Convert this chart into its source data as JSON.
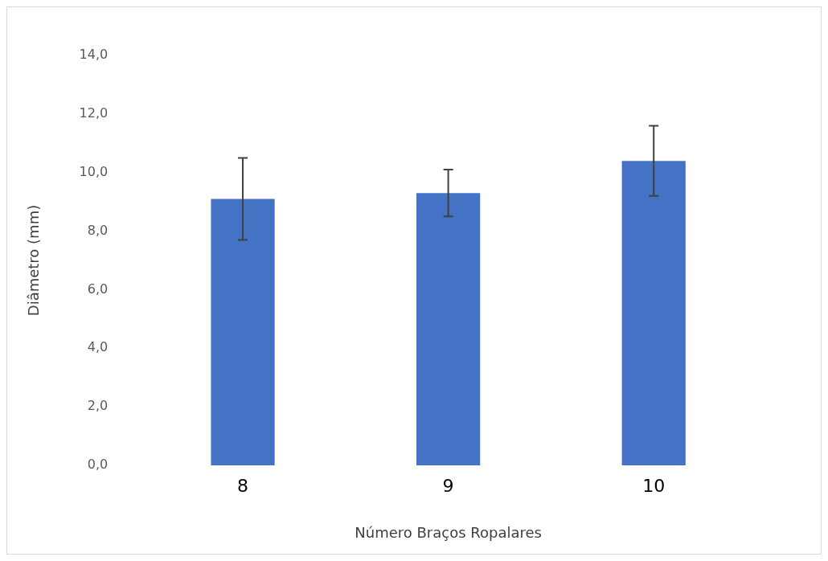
{
  "chart_data": {
    "type": "bar",
    "xlabel": "Número Braços Ropalares",
    "ylabel": "Diâmetro (mm)",
    "categories": [
      "8",
      "9",
      "10"
    ],
    "values": [
      9.1,
      9.3,
      10.4
    ],
    "errors": [
      1.4,
      0.8,
      1.2
    ],
    "color": "#4472c4",
    "ylim": [
      0,
      14
    ],
    "yticks": [
      {
        "value": 0,
        "label": "0,0"
      },
      {
        "value": 2,
        "label": "2,0"
      },
      {
        "value": 4,
        "label": "4,0"
      },
      {
        "value": 6,
        "label": "6,0"
      },
      {
        "value": 8,
        "label": "8,0"
      },
      {
        "value": 10,
        "label": "10,0"
      },
      {
        "value": 12,
        "label": "12,0"
      },
      {
        "value": 14,
        "label": "14,0"
      }
    ],
    "grid": false,
    "legend": false
  }
}
